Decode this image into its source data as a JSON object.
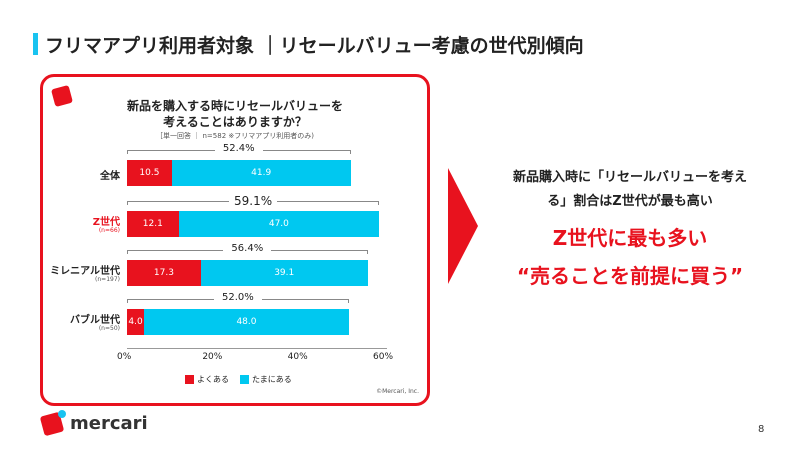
{
  "title": "フリマアプリ利用者対象 ｜リセールバリュー考慮の世代別傾向",
  "page_number": "8",
  "brand": "mercari",
  "copyright": "©Mercari, Inc.",
  "colors": {
    "often": "#e8121e",
    "sometimes": "#00c8f0",
    "accent": "#e8121e"
  },
  "right": {
    "line1": "新品購入時に「リセールバリューを考え",
    "line2": "る」割合はZ世代が最も高い",
    "highlight1": "Z世代に最も多い",
    "highlight2": "“売ることを前提に買う”"
  },
  "chart_data": {
    "type": "bar",
    "stacked": true,
    "orientation": "horizontal",
    "title": "新品を購入する時にリセールバリューを",
    "title2": "考えることはありますか？",
    "subtitle": "［単一回答 ｜ n=582 ※フリマアプリ利用者のみ)",
    "categories": [
      "全体",
      "Z世代",
      "ミレニアル世代",
      "バブル世代"
    ],
    "category_n": [
      "",
      "(n=66)",
      "(n=197)",
      "(n=50)"
    ],
    "series": [
      {
        "name": "よくある",
        "values": [
          10.5,
          12.1,
          17.3,
          4.0
        ]
      },
      {
        "name": "たまにある",
        "values": [
          41.9,
          47.0,
          39.1,
          48.0
        ]
      }
    ],
    "totals": [
      "52.4%",
      "59.1%",
      "56.4%",
      "52.0%"
    ],
    "xlim": [
      0,
      60
    ],
    "xticks": [
      "0%",
      "20%",
      "40%",
      "60%"
    ],
    "legend": "bottom"
  }
}
